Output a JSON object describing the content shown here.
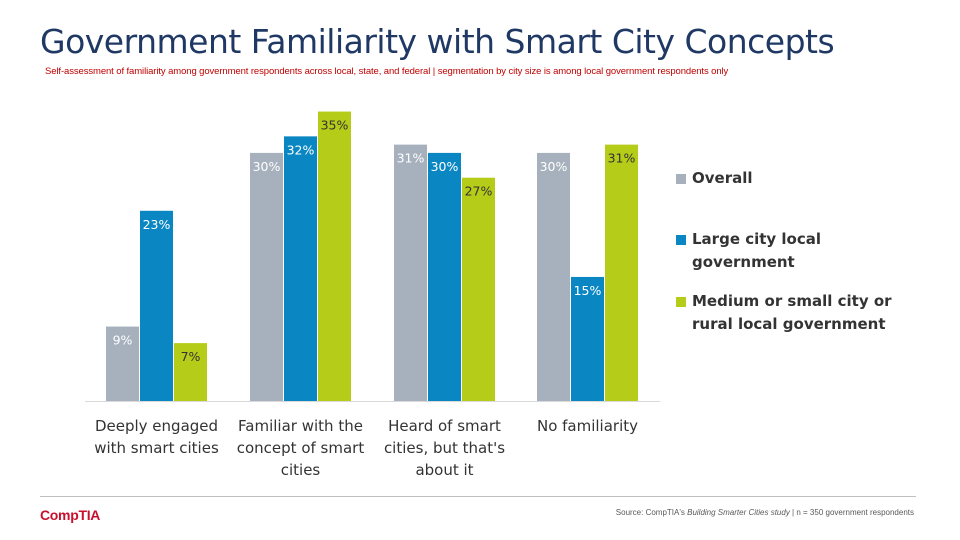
{
  "title": "Government Familiarity with Smart City Concepts",
  "subtitle": "Self-assessment of familiarity among government respondents across local, state, and federal | segmentation by city size is among local government respondents only",
  "source": {
    "prefix": "Source:  CompTIA's ",
    "study": "Building Smarter Cities study",
    "suffix": "  | n = 350 government respondents"
  },
  "logo": "CompTIA",
  "colors": {
    "overall": "#a6b1bd",
    "large_city": "#0a87c2",
    "medium_small": "#b5cc18",
    "title": "#1f3864",
    "subtitle": "#c00000"
  },
  "chart_data": {
    "type": "bar",
    "categories": [
      [
        "Deeply engaged",
        "with smart cities"
      ],
      [
        "Familiar with the",
        "concept of smart",
        "cities"
      ],
      [
        "Heard of smart",
        "cities, but that's",
        "about it"
      ],
      [
        "No familiarity"
      ]
    ],
    "series": [
      {
        "name": "Overall",
        "values": [
          9,
          30,
          31,
          30
        ],
        "labels": [
          "9%",
          "30%",
          "31%",
          "30%"
        ],
        "color": "#a6b1bd",
        "label_color": "#ffffff"
      },
      {
        "name": "Large city local government",
        "values": [
          23,
          32,
          30,
          15
        ],
        "labels": [
          "23%",
          "32%",
          "30%",
          "15%"
        ],
        "color": "#0a87c2",
        "label_color": "#ffffff"
      },
      {
        "name": "Medium or small city or rural local government",
        "values": [
          7,
          35,
          27,
          31
        ],
        "labels": [
          "7%",
          "35%",
          "27%",
          "31%"
        ],
        "color": "#b5cc18",
        "label_color": "#333333"
      }
    ],
    "legend": [
      {
        "lines": [
          "Overall"
        ],
        "color": "#a6b1bd"
      },
      {
        "lines": [
          "Large city local",
          "government"
        ],
        "color": "#0a87c2"
      },
      {
        "lines": [
          "Medium or small city or",
          "rural local government"
        ],
        "color": "#b5cc18"
      }
    ],
    "ylim": [
      0,
      35
    ],
    "legend_position": "right",
    "grid": false
  }
}
